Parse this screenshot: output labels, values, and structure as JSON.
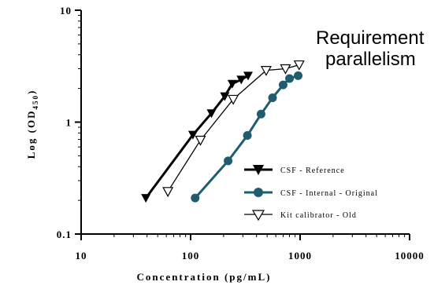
{
  "chart_data": {
    "type": "line",
    "x_scale": "log",
    "y_scale": "log",
    "xlim": [
      10,
      10000
    ],
    "ylim": [
      0.1,
      10
    ],
    "xlabel": "Concentration (pg/mL)",
    "ylabel_main": "Log (OD",
    "ylabel_sub": "450",
    "ylabel_close": ")",
    "x_ticks": [
      {
        "value": 10,
        "label": "10"
      },
      {
        "value": 100,
        "label": "100"
      },
      {
        "value": 1000,
        "label": "1000"
      },
      {
        "value": 10000,
        "label": "10000"
      }
    ],
    "y_ticks": [
      {
        "value": 0.1,
        "label": "0.1"
      },
      {
        "value": 1,
        "label": "1"
      },
      {
        "value": 10,
        "label": "10"
      }
    ],
    "annotation": [
      "Requirement",
      "parallelism"
    ],
    "series": [
      {
        "name": "CSF - Reference",
        "color": "#000000",
        "marker": "triangle-down-filled",
        "x": [
          39,
          105,
          155,
          205,
          240,
          290,
          335
        ],
        "y": [
          0.21,
          0.77,
          1.2,
          1.7,
          2.2,
          2.4,
          2.6
        ]
      },
      {
        "name": "CSF - Internal - Original",
        "color": "#1f5c6e",
        "marker": "circle-filled",
        "x": [
          110,
          220,
          330,
          440,
          560,
          700,
          800,
          960
        ],
        "y": [
          0.21,
          0.45,
          0.76,
          1.18,
          1.65,
          2.15,
          2.45,
          2.6
        ]
      },
      {
        "name": "Kit calibrator - Old",
        "color": "#000000",
        "marker": "triangle-down-open",
        "x": [
          62,
          123,
          245,
          490,
          735,
          980
        ],
        "y": [
          0.24,
          0.69,
          1.6,
          2.9,
          3.0,
          3.25
        ]
      }
    ]
  }
}
